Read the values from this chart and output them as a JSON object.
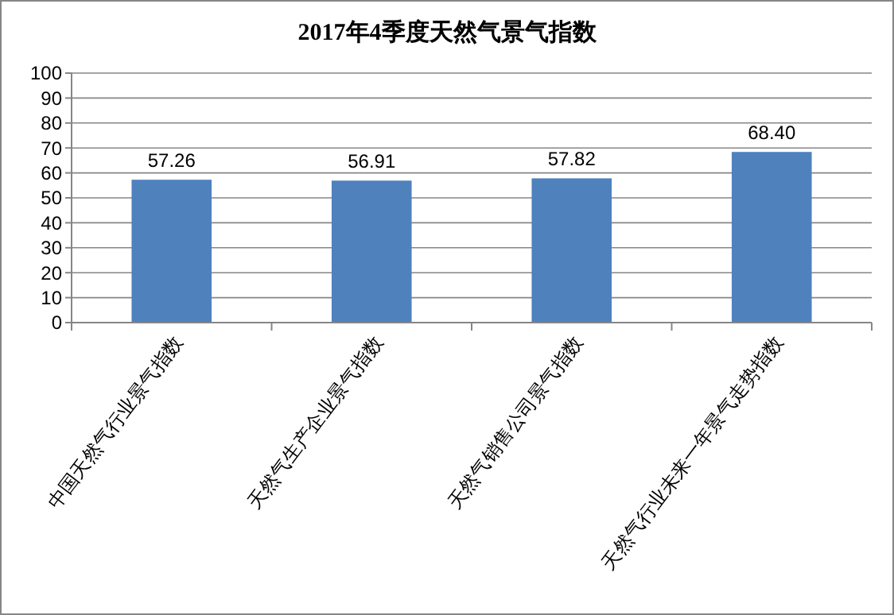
{
  "chart_data": {
    "type": "bar",
    "title": "2017年4季度天然气景气指数",
    "categories": [
      "中国天然气行业景气指数",
      "天然气生产企业景气指数",
      "天然气销售公司景气指数",
      "天然气行业未来一年景气走势指数"
    ],
    "values": [
      57.26,
      56.91,
      57.82,
      68.4
    ],
    "value_labels": [
      "57.26",
      "56.91",
      "57.82",
      "68.40"
    ],
    "color": "#4f81bd",
    "ylim": [
      0,
      100
    ],
    "yticks": [
      0,
      10,
      20,
      30,
      40,
      50,
      60,
      70,
      80,
      90,
      100
    ],
    "grid": "y"
  }
}
